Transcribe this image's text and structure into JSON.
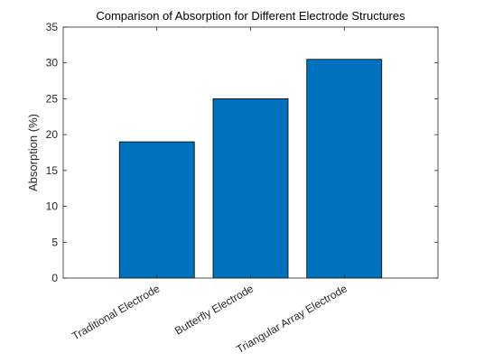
{
  "chart_data": {
    "type": "bar",
    "title": "Comparison of Absorption for Different Electrode Structures",
    "xlabel": "",
    "ylabel": "Absorption (%)",
    "categories": [
      "Traditional Electrode",
      "Butterfly Electrode",
      "Triangular Array Electrode"
    ],
    "values": [
      19,
      25,
      30.5
    ],
    "ylim": [
      0,
      35
    ],
    "yticks": [
      0,
      5,
      10,
      15,
      20,
      25,
      30,
      35
    ],
    "grid": false,
    "legend": "none",
    "bar_color": "#0072BD",
    "axis_color": "#262626"
  }
}
